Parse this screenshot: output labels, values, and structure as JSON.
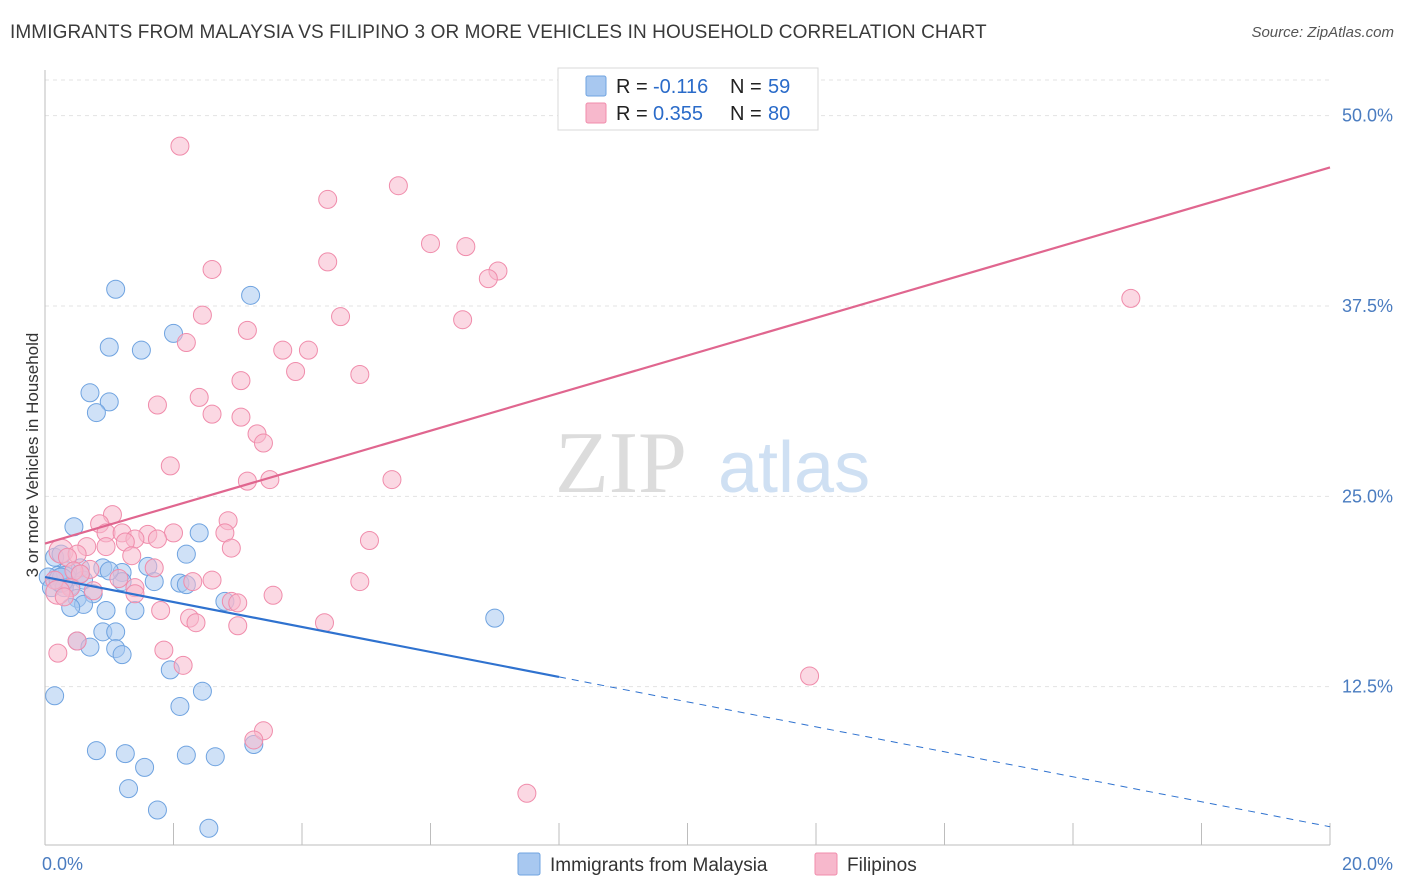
{
  "header": {
    "title": "IMMIGRANTS FROM MALAYSIA VS FILIPINO 3 OR MORE VEHICLES IN HOUSEHOLD CORRELATION CHART",
    "source": "Source: ZipAtlas.com"
  },
  "watermark": {
    "zip": "ZIP",
    "atlas": "atlas"
  },
  "legend": {
    "r_label": "R =",
    "n_label": "N =",
    "rows": [
      {
        "r": "-0.116",
        "n": "59",
        "color": "#a8c8f0"
      },
      {
        "r": "0.355",
        "n": "80",
        "color": "#f7b8cc"
      }
    ]
  },
  "bottom_legend": [
    "Immigrants from Malaysia",
    "Filipinos"
  ],
  "chart_data": {
    "type": "scatter",
    "ylabel": "3 or more Vehicles in Household",
    "xlim": [
      0,
      20
    ],
    "ylim": [
      2.1,
      53
    ],
    "x_tick_labels": [
      "0.0%",
      "20.0%"
    ],
    "y_ticks": [
      12.5,
      25.0,
      37.5,
      50.0
    ],
    "y_tick_labels": [
      "12.5%",
      "25.0%",
      "37.5%",
      "50.0%"
    ],
    "grid": true,
    "legend_position": "top-center",
    "series": [
      {
        "name": "Immigrants from Malaysia",
        "color": "#6fa3e0",
        "fill": "#a8c8f0",
        "trend": {
          "x_start": 0,
          "y_start": 19.7,
          "x_solid_end": 8.0,
          "x_end": 20,
          "y_end": 3.3
        },
        "points": [
          [
            1.1,
            38.6
          ],
          [
            3.2,
            38.2
          ],
          [
            2.0,
            35.7
          ],
          [
            1.0,
            34.8
          ],
          [
            1.5,
            34.6
          ],
          [
            0.7,
            31.8
          ],
          [
            1.0,
            31.2
          ],
          [
            0.8,
            30.5
          ],
          [
            0.45,
            23.0
          ],
          [
            2.4,
            22.6
          ],
          [
            2.2,
            21.2
          ],
          [
            0.15,
            21.0
          ],
          [
            0.25,
            21.2
          ],
          [
            1.6,
            20.4
          ],
          [
            0.9,
            20.3
          ],
          [
            0.55,
            20.3
          ],
          [
            0.35,
            20.1
          ],
          [
            1.2,
            20.0
          ],
          [
            0.2,
            19.8
          ],
          [
            0.05,
            19.7
          ],
          [
            0.3,
            19.6
          ],
          [
            0.6,
            19.5
          ],
          [
            1.2,
            19.4
          ],
          [
            1.7,
            19.4
          ],
          [
            2.1,
            19.3
          ],
          [
            0.4,
            19.1
          ],
          [
            0.1,
            19.0
          ],
          [
            0.3,
            19.0
          ],
          [
            0.75,
            18.6
          ],
          [
            0.5,
            18.3
          ],
          [
            2.8,
            18.1
          ],
          [
            0.6,
            17.9
          ],
          [
            0.4,
            17.7
          ],
          [
            0.95,
            17.5
          ],
          [
            1.4,
            17.5
          ],
          [
            0.9,
            16.1
          ],
          [
            1.1,
            16.1
          ],
          [
            0.5,
            15.5
          ],
          [
            0.7,
            15.1
          ],
          [
            1.1,
            15.0
          ],
          [
            1.2,
            14.6
          ],
          [
            1.95,
            13.6
          ],
          [
            2.45,
            12.2
          ],
          [
            0.15,
            11.9
          ],
          [
            2.1,
            11.2
          ],
          [
            7.0,
            17.0
          ],
          [
            3.25,
            8.7
          ],
          [
            0.8,
            8.3
          ],
          [
            1.25,
            8.1
          ],
          [
            2.2,
            8.0
          ],
          [
            2.65,
            7.9
          ],
          [
            1.55,
            7.2
          ],
          [
            1.3,
            5.8
          ],
          [
            1.75,
            4.4
          ],
          [
            2.55,
            3.2
          ],
          [
            0.25,
            19.5
          ],
          [
            0.55,
            19.9
          ],
          [
            1.0,
            20.1
          ],
          [
            2.2,
            19.2
          ]
        ]
      },
      {
        "name": "Filipinos",
        "color": "#f08cab",
        "fill": "#f7b8cc",
        "trend": {
          "x_start": 0,
          "y_start": 21.9,
          "x_end": 20,
          "y_end": 46.6
        },
        "points": [
          [
            2.1,
            48.0
          ],
          [
            5.5,
            45.4
          ],
          [
            4.4,
            44.5
          ],
          [
            6.0,
            41.6
          ],
          [
            6.55,
            41.4
          ],
          [
            2.6,
            39.9
          ],
          [
            4.4,
            40.4
          ],
          [
            7.05,
            39.8
          ],
          [
            6.9,
            39.3
          ],
          [
            16.9,
            38.0
          ],
          [
            2.45,
            36.9
          ],
          [
            4.6,
            36.8
          ],
          [
            6.5,
            36.6
          ],
          [
            3.15,
            35.9
          ],
          [
            2.2,
            35.1
          ],
          [
            3.7,
            34.6
          ],
          [
            4.1,
            34.6
          ],
          [
            3.9,
            33.2
          ],
          [
            4.9,
            33.0
          ],
          [
            3.05,
            32.6
          ],
          [
            2.4,
            31.5
          ],
          [
            1.75,
            31.0
          ],
          [
            2.6,
            30.4
          ],
          [
            3.05,
            30.2
          ],
          [
            3.3,
            29.1
          ],
          [
            3.4,
            28.5
          ],
          [
            1.95,
            27.0
          ],
          [
            3.15,
            26.0
          ],
          [
            3.5,
            26.1
          ],
          [
            5.4,
            26.1
          ],
          [
            1.05,
            23.8
          ],
          [
            0.85,
            23.2
          ],
          [
            2.85,
            23.4
          ],
          [
            0.95,
            22.6
          ],
          [
            1.2,
            22.6
          ],
          [
            1.6,
            22.5
          ],
          [
            2.0,
            22.6
          ],
          [
            2.8,
            22.6
          ],
          [
            1.4,
            22.2
          ],
          [
            1.75,
            22.2
          ],
          [
            1.25,
            22.0
          ],
          [
            5.05,
            22.1
          ],
          [
            0.65,
            21.7
          ],
          [
            0.95,
            21.7
          ],
          [
            2.9,
            21.6
          ],
          [
            0.25,
            21.4
          ],
          [
            0.5,
            21.2
          ],
          [
            0.35,
            21.0
          ],
          [
            1.35,
            21.1
          ],
          [
            1.7,
            20.3
          ],
          [
            0.7,
            20.2
          ],
          [
            0.45,
            20.1
          ],
          [
            0.55,
            19.9
          ],
          [
            1.15,
            19.6
          ],
          [
            0.15,
            19.5
          ],
          [
            2.3,
            19.4
          ],
          [
            4.9,
            19.4
          ],
          [
            0.4,
            19.0
          ],
          [
            1.4,
            19.0
          ],
          [
            0.75,
            18.8
          ],
          [
            0.2,
            18.7
          ],
          [
            1.4,
            18.6
          ],
          [
            0.3,
            18.4
          ],
          [
            2.9,
            18.1
          ],
          [
            3.55,
            18.5
          ],
          [
            1.8,
            17.5
          ],
          [
            2.25,
            17.0
          ],
          [
            2.35,
            16.7
          ],
          [
            3.0,
            16.5
          ],
          [
            4.35,
            16.7
          ],
          [
            1.85,
            14.9
          ],
          [
            0.5,
            15.5
          ],
          [
            0.2,
            14.7
          ],
          [
            2.15,
            13.9
          ],
          [
            11.9,
            13.2
          ],
          [
            3.4,
            9.6
          ],
          [
            3.25,
            9.0
          ],
          [
            7.5,
            5.5
          ],
          [
            3.0,
            18.0
          ],
          [
            2.6,
            19.5
          ]
        ]
      }
    ]
  }
}
